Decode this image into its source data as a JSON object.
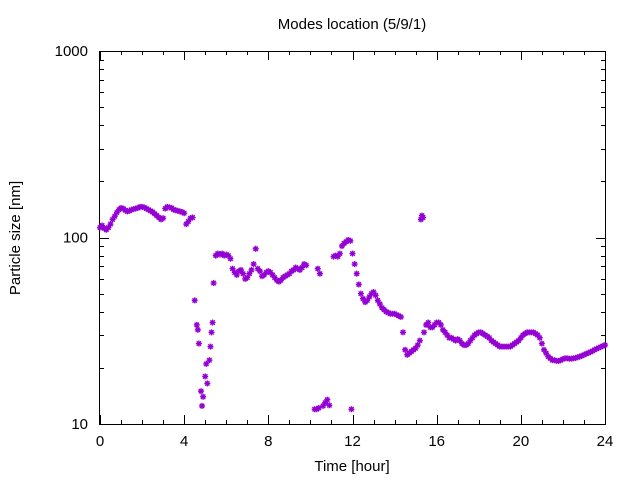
{
  "chart_data": {
    "type": "scatter",
    "title": "Modes location (5/9/1)",
    "xlabel": "Time [hour]",
    "ylabel": "Particle size [nm]",
    "xlim": [
      0,
      24
    ],
    "ylim": [
      10,
      1000
    ],
    "yscale": "log",
    "grid": false,
    "legend": "none",
    "xticks": [
      0,
      4,
      8,
      12,
      16,
      20,
      24
    ],
    "xtick_labels": [
      "0",
      "4",
      "8",
      "12",
      "16",
      "20",
      "24"
    ],
    "yticks": [
      10,
      100,
      1000
    ],
    "ytick_labels": [
      "10",
      "100",
      "1000"
    ],
    "marker_color": "#9400d3",
    "series": [
      {
        "points": [
          [
            0.0,
            113
          ],
          [
            0.1,
            116
          ],
          [
            0.2,
            112
          ],
          [
            0.3,
            110
          ],
          [
            0.4,
            113
          ],
          [
            0.5,
            118
          ],
          [
            0.6,
            125
          ],
          [
            0.7,
            130
          ],
          [
            0.8,
            136
          ],
          [
            0.9,
            141
          ],
          [
            1.0,
            144
          ],
          [
            1.1,
            143
          ],
          [
            1.2,
            140
          ],
          [
            1.3,
            138
          ],
          [
            1.4,
            139
          ],
          [
            1.5,
            141
          ],
          [
            1.6,
            142
          ],
          [
            1.7,
            143
          ],
          [
            1.8,
            144
          ],
          [
            1.9,
            146
          ],
          [
            2.0,
            146
          ],
          [
            2.1,
            145
          ],
          [
            2.2,
            143
          ],
          [
            2.3,
            141
          ],
          [
            2.4,
            139
          ],
          [
            2.5,
            137
          ],
          [
            2.6,
            134
          ],
          [
            2.7,
            131
          ],
          [
            2.8,
            128
          ],
          [
            2.9,
            125
          ],
          [
            3.0,
            127
          ],
          [
            3.1,
            143
          ],
          [
            3.2,
            146
          ],
          [
            3.3,
            145
          ],
          [
            3.4,
            144
          ],
          [
            3.5,
            141
          ],
          [
            3.6,
            140
          ],
          [
            3.7,
            139
          ],
          [
            3.8,
            138
          ],
          [
            3.9,
            137
          ],
          [
            4.0,
            135
          ],
          [
            4.1,
            118
          ],
          [
            4.2,
            122
          ],
          [
            4.3,
            127
          ],
          [
            4.4,
            128
          ],
          [
            4.5,
            46
          ],
          [
            4.6,
            34
          ],
          [
            4.65,
            32
          ],
          [
            4.7,
            27
          ],
          [
            4.8,
            15
          ],
          [
            4.85,
            12.5
          ],
          [
            4.9,
            14
          ],
          [
            5.0,
            18
          ],
          [
            5.05,
            21
          ],
          [
            5.1,
            16.5
          ],
          [
            5.2,
            22
          ],
          [
            5.25,
            26
          ],
          [
            5.3,
            31
          ],
          [
            5.35,
            35
          ],
          [
            5.4,
            57
          ],
          [
            5.5,
            80
          ],
          [
            5.6,
            82
          ],
          [
            5.7,
            81
          ],
          [
            5.8,
            82
          ],
          [
            5.9,
            80
          ],
          [
            6.0,
            81
          ],
          [
            6.1,
            80
          ],
          [
            6.2,
            77
          ],
          [
            6.3,
            68
          ],
          [
            6.4,
            65
          ],
          [
            6.5,
            63
          ],
          [
            6.6,
            66
          ],
          [
            6.7,
            67
          ],
          [
            6.8,
            64
          ],
          [
            6.9,
            60
          ],
          [
            7.0,
            61
          ],
          [
            7.1,
            64
          ],
          [
            7.2,
            67
          ],
          [
            7.3,
            72
          ],
          [
            7.4,
            87
          ],
          [
            7.5,
            68
          ],
          [
            7.6,
            66
          ],
          [
            7.7,
            62
          ],
          [
            7.8,
            63
          ],
          [
            7.9,
            65
          ],
          [
            8.0,
            66
          ],
          [
            8.1,
            65
          ],
          [
            8.2,
            63
          ],
          [
            8.3,
            61
          ],
          [
            8.4,
            59
          ],
          [
            8.5,
            58
          ],
          [
            8.6,
            59
          ],
          [
            8.7,
            61
          ],
          [
            8.8,
            62
          ],
          [
            8.9,
            63
          ],
          [
            9.0,
            64
          ],
          [
            9.1,
            66
          ],
          [
            9.2,
            67
          ],
          [
            9.3,
            69
          ],
          [
            9.4,
            68
          ],
          [
            9.5,
            67
          ],
          [
            9.6,
            69
          ],
          [
            9.7,
            72
          ],
          [
            9.8,
            71
          ],
          [
            10.2,
            12
          ],
          [
            10.3,
            12
          ],
          [
            10.4,
            12.2
          ],
          [
            10.6,
            12.5
          ],
          [
            10.7,
            13
          ],
          [
            10.8,
            13.5
          ],
          [
            10.9,
            12.6
          ],
          [
            10.35,
            68
          ],
          [
            10.45,
            64
          ],
          [
            11.1,
            79
          ],
          [
            11.2,
            80
          ],
          [
            11.3,
            79
          ],
          [
            11.4,
            82
          ],
          [
            11.5,
            90
          ],
          [
            11.6,
            93
          ],
          [
            11.7,
            95
          ],
          [
            11.8,
            97
          ],
          [
            11.9,
            96
          ],
          [
            11.95,
            12
          ],
          [
            12.0,
            82
          ],
          [
            12.1,
            72
          ],
          [
            12.2,
            64
          ],
          [
            12.3,
            56
          ],
          [
            12.4,
            50
          ],
          [
            12.5,
            47
          ],
          [
            12.6,
            45
          ],
          [
            12.7,
            46
          ],
          [
            12.8,
            48
          ],
          [
            12.9,
            50
          ],
          [
            13.0,
            51
          ],
          [
            13.1,
            49
          ],
          [
            13.2,
            46
          ],
          [
            13.3,
            44
          ],
          [
            13.4,
            42
          ],
          [
            13.5,
            41
          ],
          [
            13.6,
            40
          ],
          [
            13.7,
            39.5
          ],
          [
            13.8,
            39
          ],
          [
            13.9,
            39
          ],
          [
            14.0,
            39
          ],
          [
            14.1,
            38.5
          ],
          [
            14.2,
            38
          ],
          [
            14.3,
            37.5
          ],
          [
            14.4,
            31
          ],
          [
            14.5,
            25
          ],
          [
            14.6,
            23.5
          ],
          [
            14.7,
            24
          ],
          [
            14.8,
            24.5
          ],
          [
            14.9,
            25
          ],
          [
            15.0,
            25.5
          ],
          [
            15.1,
            26.5
          ],
          [
            15.2,
            28
          ],
          [
            15.25,
            125
          ],
          [
            15.3,
            131
          ],
          [
            15.35,
            128
          ],
          [
            15.4,
            31
          ],
          [
            15.5,
            34
          ],
          [
            15.6,
            35
          ],
          [
            15.7,
            33
          ],
          [
            15.8,
            33
          ],
          [
            15.9,
            34
          ],
          [
            16.0,
            35
          ],
          [
            16.1,
            35
          ],
          [
            16.2,
            34
          ],
          [
            16.3,
            32
          ],
          [
            16.4,
            31
          ],
          [
            16.5,
            30
          ],
          [
            16.6,
            29
          ],
          [
            16.7,
            29
          ],
          [
            16.8,
            28.5
          ],
          [
            16.9,
            28
          ],
          [
            17.0,
            28.5
          ],
          [
            17.1,
            28
          ],
          [
            17.2,
            27
          ],
          [
            17.3,
            26.5
          ],
          [
            17.4,
            26.5
          ],
          [
            17.5,
            27
          ],
          [
            17.6,
            28
          ],
          [
            17.7,
            29
          ],
          [
            17.8,
            30
          ],
          [
            17.9,
            30.5
          ],
          [
            18.0,
            31
          ],
          [
            18.1,
            31
          ],
          [
            18.2,
            30.5
          ],
          [
            18.3,
            30
          ],
          [
            18.4,
            29.5
          ],
          [
            18.5,
            29
          ],
          [
            18.6,
            28
          ],
          [
            18.7,
            27.5
          ],
          [
            18.8,
            27
          ],
          [
            18.9,
            26.5
          ],
          [
            19.0,
            26
          ],
          [
            19.1,
            26
          ],
          [
            19.2,
            26
          ],
          [
            19.3,
            26
          ],
          [
            19.4,
            26
          ],
          [
            19.5,
            26
          ],
          [
            19.6,
            26.5
          ],
          [
            19.7,
            27
          ],
          [
            19.8,
            27.5
          ],
          [
            19.9,
            28
          ],
          [
            20.0,
            29
          ],
          [
            20.1,
            30
          ],
          [
            20.2,
            30.5
          ],
          [
            20.3,
            31
          ],
          [
            20.4,
            31
          ],
          [
            20.5,
            31
          ],
          [
            20.6,
            31
          ],
          [
            20.7,
            30.5
          ],
          [
            20.8,
            30
          ],
          [
            20.9,
            29
          ],
          [
            21.0,
            27
          ],
          [
            21.1,
            25
          ],
          [
            21.2,
            24
          ],
          [
            21.3,
            23
          ],
          [
            21.4,
            22.5
          ],
          [
            21.5,
            22
          ],
          [
            21.6,
            22
          ],
          [
            21.7,
            21.8
          ],
          [
            21.8,
            21.8
          ],
          [
            21.9,
            22
          ],
          [
            22.0,
            22.3
          ],
          [
            22.1,
            22.5
          ],
          [
            22.2,
            22.5
          ],
          [
            22.3,
            22.4
          ],
          [
            22.4,
            22.4
          ],
          [
            22.5,
            22.5
          ],
          [
            22.6,
            22.6
          ],
          [
            22.7,
            22.8
          ],
          [
            22.8,
            23
          ],
          [
            22.9,
            23.2
          ],
          [
            23.0,
            23.5
          ],
          [
            23.1,
            23.8
          ],
          [
            23.2,
            24
          ],
          [
            23.3,
            24.3
          ],
          [
            23.4,
            24.6
          ],
          [
            23.5,
            25
          ],
          [
            23.6,
            25.3
          ],
          [
            23.7,
            25.6
          ],
          [
            23.8,
            25.9
          ],
          [
            23.9,
            26.2
          ],
          [
            24.0,
            26.5
          ]
        ]
      }
    ]
  }
}
